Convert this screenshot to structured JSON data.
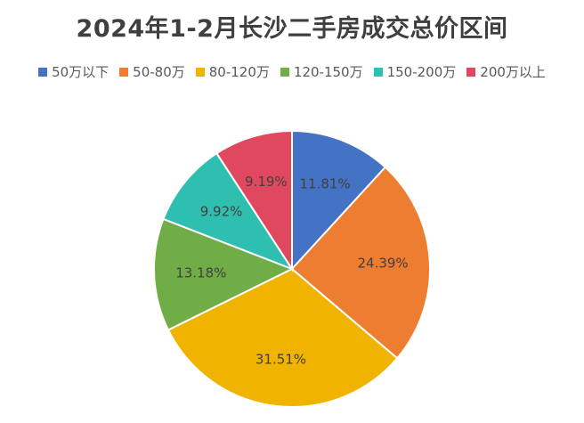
{
  "chart_data": {
    "type": "pie",
    "title": "2024年1-2月长沙二手房成交总价区间",
    "categories": [
      "50万以下",
      "50-80万",
      "80-120万",
      "120-150万",
      "150-200万",
      "200万以上"
    ],
    "values": [
      11.81,
      24.39,
      31.51,
      13.18,
      9.92,
      9.19
    ],
    "value_labels": [
      "11.81%",
      "24.39%",
      "31.51%",
      "13.18%",
      "9.92%",
      "9.19%"
    ],
    "colors": [
      "#4472C4",
      "#ED7D31",
      "#F0B400",
      "#70AD47",
      "#2FBFB0",
      "#E0485F"
    ],
    "legend_position": "top",
    "start_angle": "12 o'clock",
    "direction": "clockwise"
  }
}
